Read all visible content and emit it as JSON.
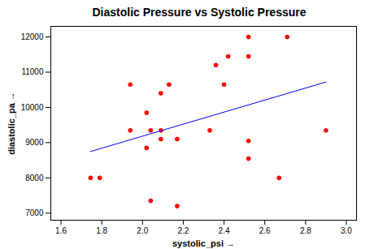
{
  "chart_data": {
    "type": "scatter",
    "title": "Diastolic Pressure vs Systolic Pressure",
    "x_label": "systolic_psi",
    "y_label": "diastolic_pa",
    "xlim": [
      1.55,
      3.05
    ],
    "ylim": [
      6800,
      12300
    ],
    "xticks": [
      1.6,
      1.8,
      {
        "value": 2,
        "label": "2.0"
      },
      2.2,
      2.4,
      2.6,
      2.8,
      {
        "value": 3,
        "label": "3.0"
      }
    ],
    "yticks": [
      7000,
      8000,
      9000,
      10000,
      11000,
      12000
    ],
    "grid": false,
    "series": [
      {
        "type": "scatter",
        "color": "#ff0000",
        "marker": "circle",
        "x": [
          1.745,
          1.79,
          1.94,
          1.94,
          2.02,
          2.02,
          2.04,
          2.04,
          2.09,
          2.09,
          2.09,
          2.13,
          2.17,
          2.17,
          2.33,
          2.36,
          2.4,
          2.42,
          2.52,
          2.52,
          2.52,
          2.52,
          2.67,
          2.71,
          2.9
        ],
        "values": [
          8000,
          8000,
          10650,
          9350,
          9850,
          8850,
          9350,
          7350,
          10400,
          9350,
          9100,
          10650,
          9100,
          7200,
          9350,
          11200,
          10650,
          11450,
          12000,
          11450,
          9050,
          8550,
          8000,
          12000,
          9350
        ]
      },
      {
        "type": "line",
        "color": "#0000ff",
        "line_style": "solid",
        "x": [
          1.745,
          2.9
        ],
        "values": [
          8750,
          10720
        ]
      }
    ]
  }
}
